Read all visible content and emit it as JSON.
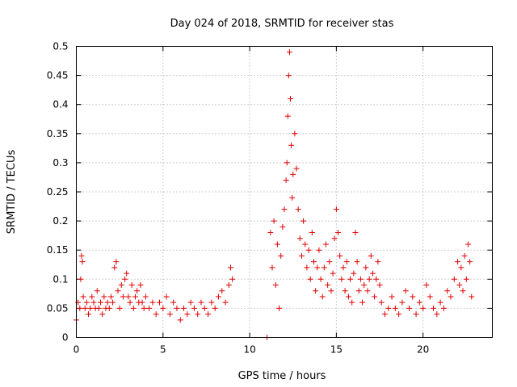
{
  "chart_data": {
    "type": "scatter",
    "title": "Day 024 of 2018, SRMTID for receiver stas",
    "xlabel": "GPS time / hours",
    "ylabel": "SRMTID / TECUs",
    "xlim": [
      0,
      24
    ],
    "ylim": [
      0,
      0.5
    ],
    "xticks": [
      0,
      5,
      10,
      15,
      20
    ],
    "xtick_labels": [
      "0",
      "5",
      "10",
      "15",
      "20"
    ],
    "yticks": [
      0,
      0.05,
      0.1,
      0.15,
      0.2,
      0.25,
      0.3,
      0.35,
      0.4,
      0.45,
      0.5
    ],
    "ytick_labels": [
      "0",
      "0.05",
      "0.1",
      "0.15",
      "0.2",
      "0.25",
      "0.3",
      "0.35",
      "0.4",
      "0.45",
      "0.5"
    ],
    "grid": true,
    "legend": false,
    "marker": "plus",
    "color": "#e00000",
    "series": [
      {
        "name": "SRMTID",
        "x": [
          0.0,
          0.1,
          0.2,
          0.25,
          0.3,
          0.35,
          0.4,
          0.5,
          0.6,
          0.7,
          0.8,
          0.9,
          1.0,
          1.1,
          1.2,
          1.3,
          1.4,
          1.5,
          1.6,
          1.7,
          1.8,
          1.9,
          2.0,
          2.1,
          2.2,
          2.3,
          2.4,
          2.5,
          2.6,
          2.7,
          2.8,
          2.9,
          3.0,
          3.1,
          3.2,
          3.3,
          3.4,
          3.5,
          3.6,
          3.7,
          3.8,
          3.9,
          4.0,
          4.2,
          4.4,
          4.6,
          4.8,
          5.0,
          5.2,
          5.4,
          5.6,
          5.8,
          6.0,
          6.2,
          6.4,
          6.6,
          6.8,
          7.0,
          7.2,
          7.4,
          7.6,
          7.8,
          8.0,
          8.2,
          8.4,
          8.6,
          8.8,
          8.9,
          9.0,
          11.0,
          11.2,
          11.3,
          11.4,
          11.5,
          11.6,
          11.7,
          11.8,
          11.9,
          12.0,
          12.1,
          12.15,
          12.2,
          12.25,
          12.3,
          12.35,
          12.4,
          12.45,
          12.5,
          12.6,
          12.7,
          12.8,
          12.9,
          13.0,
          13.1,
          13.2,
          13.3,
          13.4,
          13.5,
          13.6,
          13.7,
          13.8,
          13.9,
          14.0,
          14.1,
          14.2,
          14.3,
          14.4,
          14.5,
          14.6,
          14.7,
          14.8,
          14.9,
          15.0,
          15.1,
          15.2,
          15.3,
          15.4,
          15.5,
          15.6,
          15.7,
          15.8,
          15.9,
          16.0,
          16.1,
          16.2,
          16.3,
          16.4,
          16.5,
          16.6,
          16.7,
          16.8,
          16.9,
          17.0,
          17.1,
          17.2,
          17.3,
          17.4,
          17.5,
          17.6,
          17.8,
          18.0,
          18.2,
          18.4,
          18.6,
          18.8,
          19.0,
          19.2,
          19.4,
          19.6,
          19.8,
          20.0,
          20.2,
          20.4,
          20.6,
          20.8,
          21.0,
          21.2,
          21.4,
          21.6,
          21.8,
          22.0,
          22.1,
          22.2,
          22.3,
          22.4,
          22.5,
          22.6,
          22.7,
          22.8
        ],
        "y": [
          0.03,
          0.06,
          0.05,
          0.1,
          0.14,
          0.13,
          0.07,
          0.05,
          0.06,
          0.04,
          0.05,
          0.07,
          0.06,
          0.05,
          0.08,
          0.05,
          0.06,
          0.04,
          0.07,
          0.05,
          0.06,
          0.05,
          0.07,
          0.06,
          0.12,
          0.13,
          0.08,
          0.05,
          0.09,
          0.07,
          0.1,
          0.11,
          0.07,
          0.06,
          0.09,
          0.05,
          0.07,
          0.08,
          0.06,
          0.09,
          0.06,
          0.05,
          0.07,
          0.05,
          0.06,
          0.04,
          0.06,
          0.05,
          0.07,
          0.04,
          0.06,
          0.05,
          0.03,
          0.05,
          0.04,
          0.06,
          0.05,
          0.04,
          0.06,
          0.05,
          0.04,
          0.06,
          0.05,
          0.07,
          0.08,
          0.06,
          0.09,
          0.12,
          0.1,
          0.0,
          0.18,
          0.12,
          0.2,
          0.09,
          0.16,
          0.05,
          0.14,
          0.19,
          0.22,
          0.27,
          0.3,
          0.38,
          0.45,
          0.49,
          0.41,
          0.33,
          0.24,
          0.28,
          0.35,
          0.29,
          0.22,
          0.17,
          0.14,
          0.2,
          0.16,
          0.12,
          0.15,
          0.1,
          0.18,
          0.13,
          0.08,
          0.12,
          0.15,
          0.1,
          0.07,
          0.12,
          0.16,
          0.09,
          0.13,
          0.08,
          0.11,
          0.17,
          0.22,
          0.18,
          0.14,
          0.1,
          0.12,
          0.08,
          0.13,
          0.07,
          0.1,
          0.06,
          0.11,
          0.18,
          0.13,
          0.08,
          0.1,
          0.06,
          0.09,
          0.12,
          0.08,
          0.1,
          0.14,
          0.11,
          0.07,
          0.1,
          0.13,
          0.09,
          0.06,
          0.04,
          0.05,
          0.07,
          0.05,
          0.04,
          0.06,
          0.08,
          0.05,
          0.07,
          0.04,
          0.06,
          0.05,
          0.09,
          0.07,
          0.05,
          0.04,
          0.06,
          0.05,
          0.08,
          0.07,
          0.1,
          0.13,
          0.09,
          0.12,
          0.08,
          0.14,
          0.1,
          0.16,
          0.13,
          0.07
        ]
      }
    ]
  }
}
